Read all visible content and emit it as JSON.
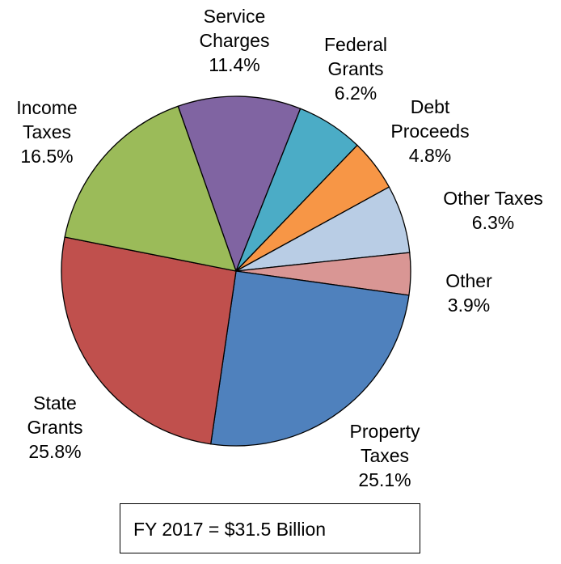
{
  "chart_data": {
    "type": "pie",
    "categories": [
      "Service Charges",
      "Federal Grants",
      "Debt Proceeds",
      "Other Taxes",
      "Other",
      "Property Taxes",
      "State Grants",
      "Income Taxes"
    ],
    "values": [
      11.4,
      6.2,
      4.8,
      6.3,
      3.9,
      25.1,
      25.8,
      16.5
    ],
    "value_labels": [
      "11.4%",
      "6.2%",
      "4.8%",
      "6.3%",
      "3.9%",
      "25.1%",
      "25.8%",
      "16.5%"
    ],
    "colors": [
      "#8064a2",
      "#4bacc6",
      "#f79646",
      "#b9cde5",
      "#d99694",
      "#4f81bd",
      "#c0504d",
      "#9bbb59"
    ],
    "annotation": "FY 2017 = $31.5 Billion"
  }
}
